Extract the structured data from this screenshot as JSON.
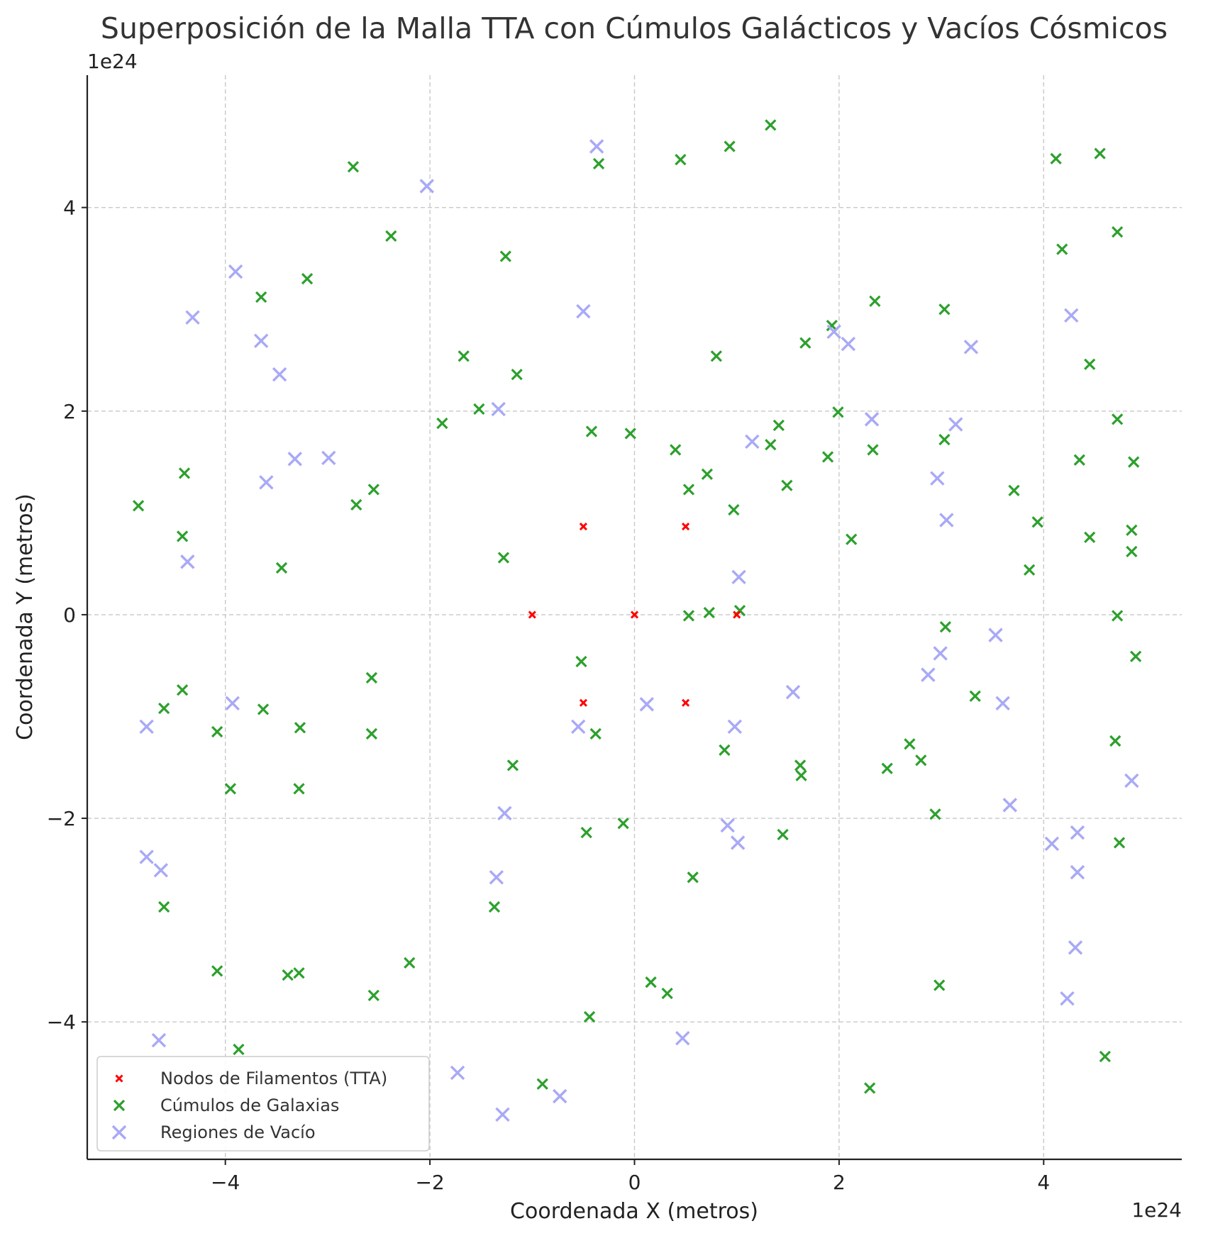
{
  "chart_data": {
    "type": "scatter",
    "title": "Superposición de la Malla TTA con Cúmulos Galácticos y Vacíos Cósmicos",
    "xlabel": "Coordenada X (metros)",
    "ylabel": "Coordenada Y (metros)",
    "x_offset_label": "1e24",
    "y_offset_label": "1e24",
    "xlim": [
      -5.35,
      5.35
    ],
    "ylim": [
      -5.35,
      5.3
    ],
    "x_ticks": [
      -4,
      -2,
      0,
      2,
      4
    ],
    "y_ticks": [
      -4,
      -2,
      0,
      2,
      4
    ],
    "x_tick_labels": [
      "−4",
      "−2",
      "0",
      "2",
      "4"
    ],
    "y_tick_labels": [
      "−4",
      "−2",
      "0",
      "2",
      "4"
    ],
    "grid": true,
    "legend_position": "lower-left",
    "series": [
      {
        "name": "Nodos de Filamentos (TTA)",
        "color": "#ff0000",
        "marker": "x-small",
        "points": [
          [
            -0.5,
            0.866
          ],
          [
            0.5,
            0.866
          ],
          [
            -1,
            0
          ],
          [
            0,
            0
          ],
          [
            1,
            0
          ],
          [
            -0.5,
            -0.866
          ],
          [
            0.5,
            -0.866
          ]
        ]
      },
      {
        "name": "Cúmulos de Galaxias",
        "color": "#2ca02c",
        "marker": "x",
        "points": [
          [
            1.33,
            4.81
          ],
          [
            0.93,
            4.6
          ],
          [
            0.45,
            4.47
          ],
          [
            -0.35,
            4.43
          ],
          [
            4.55,
            4.53
          ],
          [
            4.12,
            4.48
          ],
          [
            -2.75,
            4.4
          ],
          [
            -2.38,
            3.72
          ],
          [
            4.72,
            3.76
          ],
          [
            4.18,
            3.59
          ],
          [
            -1.26,
            3.52
          ],
          [
            -3.2,
            3.3
          ],
          [
            -3.65,
            3.12
          ],
          [
            2.35,
            3.08
          ],
          [
            3.03,
            3.0
          ],
          [
            1.93,
            2.84
          ],
          [
            1.67,
            2.67
          ],
          [
            0.8,
            2.54
          ],
          [
            -1.67,
            2.54
          ],
          [
            -1.15,
            2.36
          ],
          [
            4.45,
            2.46
          ],
          [
            -1.52,
            2.02
          ],
          [
            1.99,
            1.99
          ],
          [
            4.72,
            1.92
          ],
          [
            -1.88,
            1.88
          ],
          [
            1.41,
            1.86
          ],
          [
            -0.42,
            1.8
          ],
          [
            -0.04,
            1.78
          ],
          [
            1.33,
            1.67
          ],
          [
            3.03,
            1.72
          ],
          [
            0.4,
            1.62
          ],
          [
            2.33,
            1.62
          ],
          [
            1.89,
            1.55
          ],
          [
            4.35,
            1.52
          ],
          [
            4.88,
            1.5
          ],
          [
            0.71,
            1.38
          ],
          [
            -4.4,
            1.39
          ],
          [
            1.49,
            1.27
          ],
          [
            0.53,
            1.23
          ],
          [
            -2.55,
            1.23
          ],
          [
            3.71,
            1.22
          ],
          [
            -4.85,
            1.07
          ],
          [
            -2.72,
            1.08
          ],
          [
            0.97,
            1.03
          ],
          [
            3.94,
            0.91
          ],
          [
            4.86,
            0.83
          ],
          [
            -4.42,
            0.77
          ],
          [
            2.12,
            0.74
          ],
          [
            4.45,
            0.76
          ],
          [
            4.86,
            0.62
          ],
          [
            -1.28,
            0.56
          ],
          [
            -3.45,
            0.46
          ],
          [
            3.86,
            0.44
          ],
          [
            0.73,
            0.02
          ],
          [
            0.53,
            -0.01
          ],
          [
            1.03,
            0.04
          ],
          [
            4.72,
            -0.01
          ],
          [
            3.04,
            -0.12
          ],
          [
            4.9,
            -0.41
          ],
          [
            -0.52,
            -0.46
          ],
          [
            -2.57,
            -0.62
          ],
          [
            -4.42,
            -0.74
          ],
          [
            -4.6,
            -0.92
          ],
          [
            -3.63,
            -0.93
          ],
          [
            3.33,
            -0.8
          ],
          [
            -4.08,
            -1.15
          ],
          [
            -3.27,
            -1.11
          ],
          [
            -2.57,
            -1.17
          ],
          [
            -0.38,
            -1.17
          ],
          [
            4.7,
            -1.24
          ],
          [
            2.69,
            -1.27
          ],
          [
            0.88,
            -1.33
          ],
          [
            2.8,
            -1.43
          ],
          [
            1.62,
            -1.48
          ],
          [
            -1.19,
            -1.48
          ],
          [
            2.47,
            -1.51
          ],
          [
            1.63,
            -1.58
          ],
          [
            -3.95,
            -1.71
          ],
          [
            -3.28,
            -1.71
          ],
          [
            2.94,
            -1.96
          ],
          [
            -0.11,
            -2.05
          ],
          [
            -0.47,
            -2.14
          ],
          [
            1.45,
            -2.16
          ],
          [
            4.74,
            -2.24
          ],
          [
            0.57,
            -2.58
          ],
          [
            -4.6,
            -2.87
          ],
          [
            -1.37,
            -2.87
          ],
          [
            -2.2,
            -3.42
          ],
          [
            -4.08,
            -3.5
          ],
          [
            -3.39,
            -3.54
          ],
          [
            -3.28,
            -3.52
          ],
          [
            0.16,
            -3.61
          ],
          [
            0.32,
            -3.72
          ],
          [
            2.98,
            -3.64
          ],
          [
            -2.55,
            -3.74
          ],
          [
            -0.44,
            -3.95
          ],
          [
            -3.87,
            -4.27
          ],
          [
            4.6,
            -4.34
          ],
          [
            -0.9,
            -4.61
          ],
          [
            2.3,
            -4.65
          ]
        ]
      },
      {
        "name": "Regiones de Vacío",
        "color": "#a9a9f7",
        "marker": "x-large",
        "points": [
          [
            -0.37,
            4.6
          ],
          [
            -2.03,
            4.21
          ],
          [
            -3.9,
            3.37
          ],
          [
            -4.32,
            2.92
          ],
          [
            -0.5,
            2.98
          ],
          [
            4.27,
            2.94
          ],
          [
            -3.65,
            2.69
          ],
          [
            -3.47,
            2.36
          ],
          [
            1.95,
            2.78
          ],
          [
            2.09,
            2.66
          ],
          [
            3.29,
            2.63
          ],
          [
            -1.33,
            2.02
          ],
          [
            2.32,
            1.92
          ],
          [
            3.14,
            1.87
          ],
          [
            1.15,
            1.7
          ],
          [
            -3.32,
            1.53
          ],
          [
            -2.99,
            1.54
          ],
          [
            -3.6,
            1.3
          ],
          [
            2.96,
            1.34
          ],
          [
            3.05,
            0.93
          ],
          [
            -4.37,
            0.52
          ],
          [
            1.02,
            0.37
          ],
          [
            3.53,
            -0.2
          ],
          [
            2.99,
            -0.38
          ],
          [
            2.87,
            -0.59
          ],
          [
            1.55,
            -0.76
          ],
          [
            3.6,
            -0.87
          ],
          [
            -3.93,
            -0.87
          ],
          [
            0.12,
            -0.88
          ],
          [
            -4.77,
            -1.1
          ],
          [
            -0.55,
            -1.1
          ],
          [
            0.98,
            -1.1
          ],
          [
            4.86,
            -1.63
          ],
          [
            3.67,
            -1.87
          ],
          [
            -1.27,
            -1.95
          ],
          [
            0.91,
            -2.07
          ],
          [
            4.33,
            -2.14
          ],
          [
            1.01,
            -2.24
          ],
          [
            4.08,
            -2.25
          ],
          [
            -4.77,
            -2.38
          ],
          [
            -4.63,
            -2.51
          ],
          [
            4.33,
            -2.53
          ],
          [
            -1.35,
            -2.58
          ],
          [
            4.31,
            -3.27
          ],
          [
            4.23,
            -3.77
          ],
          [
            0.47,
            -4.16
          ],
          [
            -4.65,
            -4.18
          ],
          [
            -1.73,
            -4.5
          ],
          [
            -0.73,
            -4.73
          ],
          [
            -1.29,
            -4.91
          ]
        ]
      }
    ]
  }
}
